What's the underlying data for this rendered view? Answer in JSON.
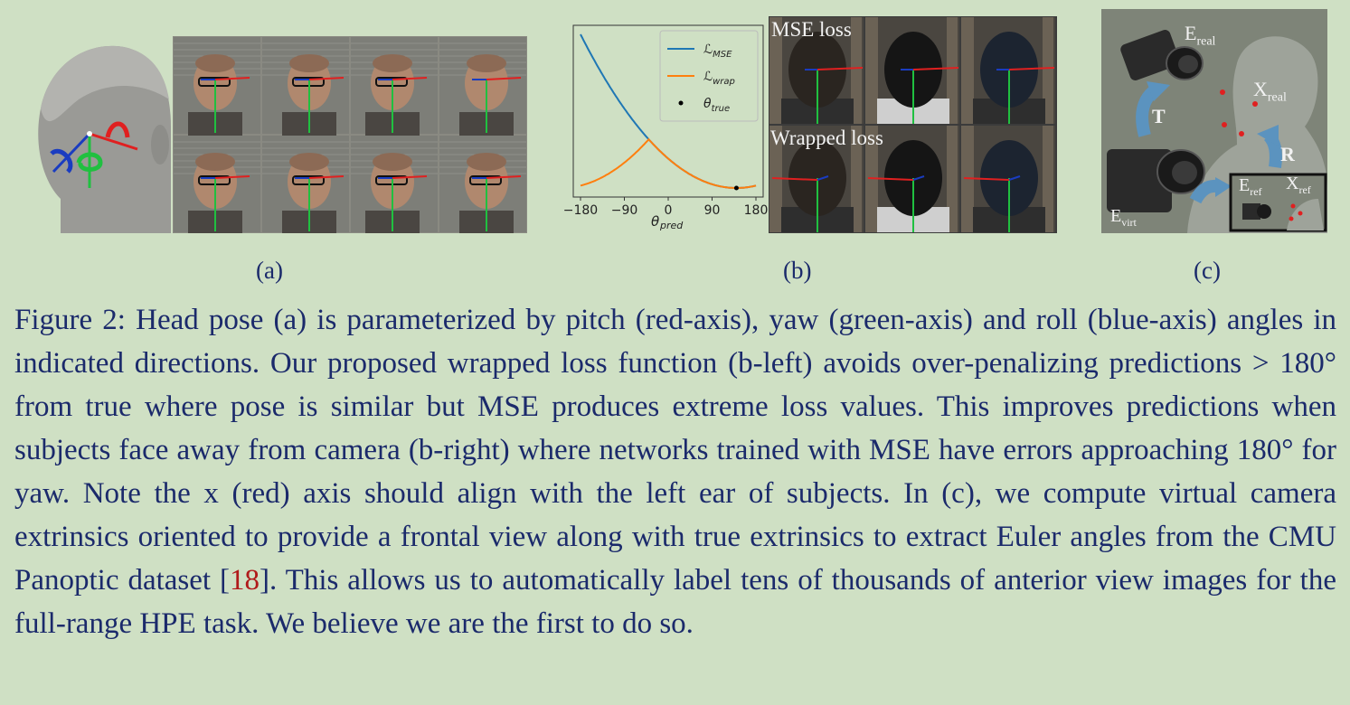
{
  "panels": {
    "a": {
      "label": "(a)"
    },
    "b": {
      "label": "(b)",
      "mse_label": "MSE loss",
      "wrapped_label": "Wrapped loss"
    },
    "c": {
      "label": "(c)",
      "e_real": "E",
      "e_real_sub": "real",
      "x_real": "X",
      "x_real_sub": "real",
      "t": "T",
      "r": "R",
      "e_ref": "E",
      "e_ref_sub": "ref",
      "x_ref": "X",
      "x_ref_sub": "ref",
      "e_virt": "E",
      "e_virt_sub": "virt"
    }
  },
  "chart_data": {
    "type": "line",
    "xlabel": "θ",
    "xlabel_sub": "pred",
    "xticks": [
      "−180",
      "−90",
      "0",
      "90",
      "180"
    ],
    "xlim": [
      -180,
      180
    ],
    "legend": [
      {
        "name": "ℒ",
        "sub": "MSE",
        "color": "#1f77b4",
        "kind": "line"
      },
      {
        "name": "ℒ",
        "sub": "wrap",
        "color": "#ff7f0e",
        "kind": "line"
      },
      {
        "name": "θ",
        "sub": "true",
        "color": "#000000",
        "kind": "dot"
      }
    ],
    "theta_true": 140
  },
  "caption": {
    "part1": "Figure 2: Head pose (a) is parameterized by pitch (red-axis), yaw (green-axis) and roll (blue-axis) angles in indicated directions. Our proposed wrapped loss function (b-left) avoids over-penalizing predictions > 180° from true where pose is similar but MSE produces extreme loss values. This improves predictions when subjects face away from camera (b-right) where networks trained with MSE have errors approaching 180° for yaw. Note the x (red) axis should align with the left ear of subjects. In (c), we compute virtual camera extrinsics oriented to provide a frontal view along with true extrinsics to extract Euler angles from the CMU Panoptic dataset [",
    "cite": "18",
    "part2": "]. This allows us to automatically label tens of thousands of anterior view images for the full-range HPE task. We believe we are the first to do so."
  },
  "colors": {
    "background": "#cfe0c4",
    "text": "#1b2a6b",
    "cite": "#b01a1a",
    "pitch": "#e02020",
    "yaw": "#20c040",
    "roll": "#1a3cc0"
  }
}
